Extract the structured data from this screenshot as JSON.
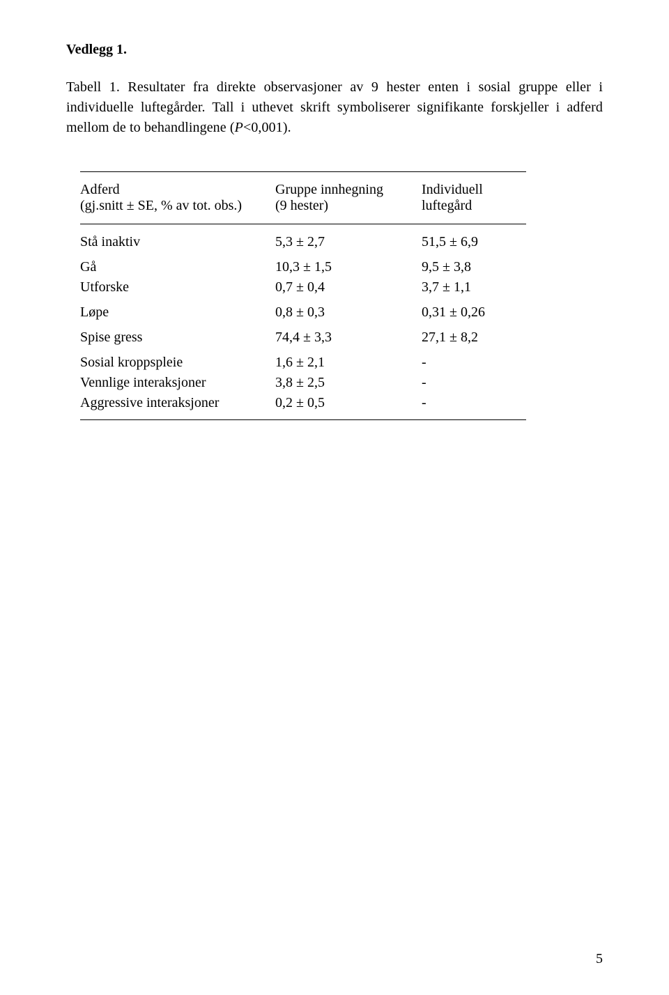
{
  "heading": "Vedlegg 1.",
  "caption": {
    "prefix": "Tabell 1. Resultater fra direkte observasjoner av 9 hester enten i sosial gruppe eller i individuelle luftegårder. Tall i uthevet skrift symboliserer signifikante forskjeller i adferd mellom de to behandlingene (",
    "italic": "P",
    "suffix": "<0,001)."
  },
  "table": {
    "header": {
      "col1_line1": "Adferd",
      "col1_line2": "(gj.snitt ± SE, % av tot. obs.)",
      "col2_line1": "Gruppe innhegning",
      "col2_line2": "(9 hester)",
      "col3_line1": "Individuell",
      "col3_line2": "luftegård"
    },
    "rows": [
      {
        "label": "Stå inaktiv",
        "group": "5,3 ± 2,7",
        "individual": "51,5 ± 6,9",
        "bold": true,
        "gap_after": true
      },
      {
        "label": "Gå",
        "group": "10,3 ± 1,5",
        "individual": "9,5 ± 3,8",
        "bold": false
      },
      {
        "label": "Utforske",
        "group": "0,7 ± 0,4",
        "individual": "3,7 ± 1,1",
        "bold": false,
        "gap_after": true
      },
      {
        "label": "Løpe",
        "group": "0,8 ± 0,3",
        "individual": "0,31 ± 0,26",
        "bold": false,
        "gap_after": true
      },
      {
        "label": "Spise gress",
        "group": "74,4 ± 3,3",
        "individual": "27,1 ± 8,2",
        "bold": true,
        "gap_after": true
      },
      {
        "label": "Sosial kroppspleie",
        "group": "1,6 ± 2,1",
        "individual": "-",
        "bold": false
      },
      {
        "label": "Vennlige interaksjoner",
        "group": "3,8 ± 2,5",
        "individual": "-",
        "bold": false
      },
      {
        "label": "Aggressive interaksjoner",
        "group": "0,2 ± 0,5",
        "individual": "-",
        "bold": false
      }
    ]
  },
  "page_number": "5"
}
